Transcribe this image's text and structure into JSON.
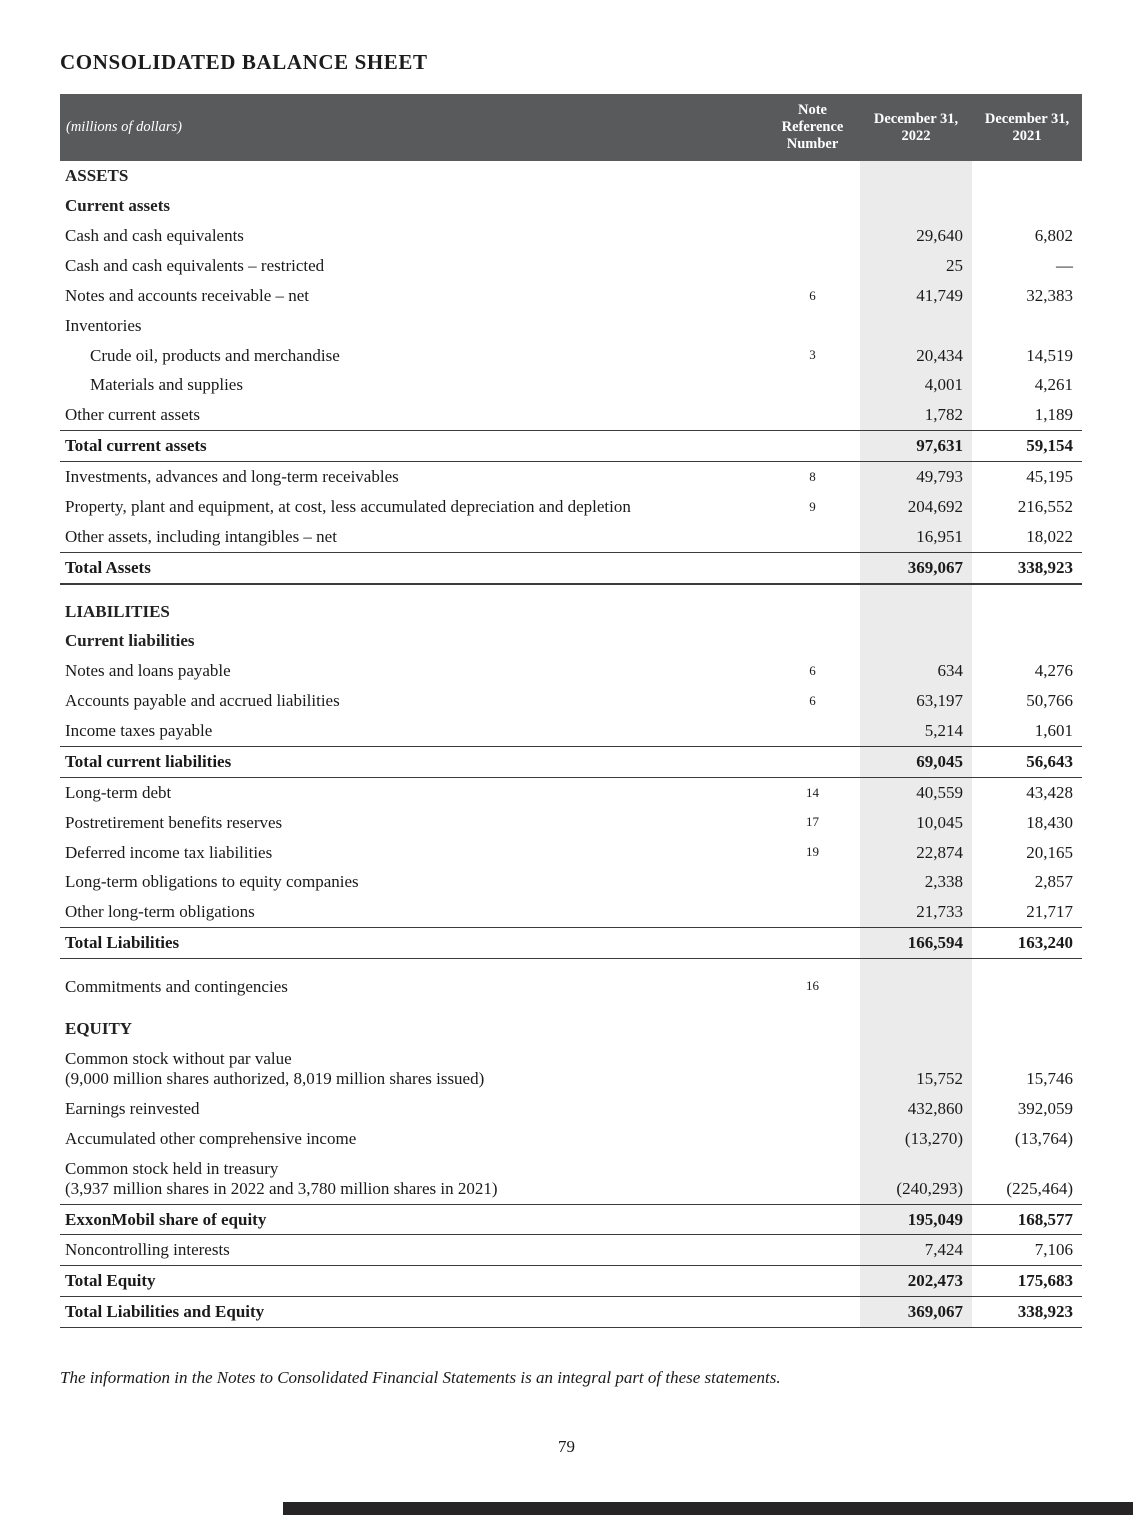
{
  "page": {
    "title": "CONSOLIDATED BALANCE SHEET",
    "footnote": "The information in the Notes to Consolidated Financial Statements is an integral part of these statements.",
    "page_number": "79"
  },
  "colors": {
    "header_bg": "#595a5c",
    "band_bg": "#ebebeb",
    "footer_bar": "#262425",
    "text": "#1a1a1a"
  },
  "table": {
    "columns": {
      "label": "(millions of dollars)",
      "note": "Note\nReference\nNumber",
      "y2022": "December 31,\n2022",
      "y2021": "December 31,\n2021"
    },
    "rows": [
      {
        "t": "section",
        "label": "ASSETS"
      },
      {
        "t": "sub",
        "label": "Current assets"
      },
      {
        "t": "item",
        "label": "Cash and cash equivalents",
        "note": "",
        "v2022": "29,640",
        "v2021": "6,802"
      },
      {
        "t": "item",
        "label": "Cash and cash equivalents – restricted",
        "note": "",
        "v2022": "25",
        "v2021": "—"
      },
      {
        "t": "item",
        "label": "Notes and accounts receivable – net",
        "note": "6",
        "v2022": "41,749",
        "v2021": "32,383"
      },
      {
        "t": "item",
        "label": "Inventories",
        "note": "",
        "v2022": "",
        "v2021": ""
      },
      {
        "t": "item",
        "indent": true,
        "label": "Crude oil, products and merchandise",
        "note": "3",
        "v2022": "20,434",
        "v2021": "14,519"
      },
      {
        "t": "item",
        "indent": true,
        "label": "Materials and supplies",
        "note": "",
        "v2022": "4,001",
        "v2021": "4,261"
      },
      {
        "t": "item",
        "label": "Other current assets",
        "note": "",
        "v2022": "1,782",
        "v2021": "1,189"
      },
      {
        "t": "total",
        "label": "Total current assets",
        "note": "",
        "v2022": "97,631",
        "v2021": "59,154"
      },
      {
        "t": "item",
        "label": "Investments, advances and long-term receivables",
        "note": "8",
        "v2022": "49,793",
        "v2021": "45,195"
      },
      {
        "t": "item",
        "label": "Property, plant and equipment, at cost, less accumulated depreciation and depletion",
        "note": "9",
        "v2022": "204,692",
        "v2021": "216,552"
      },
      {
        "t": "item",
        "label": "Other assets, including intangibles – net",
        "note": "",
        "v2022": "16,951",
        "v2021": "18,022"
      },
      {
        "t": "total",
        "thick": true,
        "label": "Total Assets",
        "note": "",
        "v2022": "369,067",
        "v2021": "338,923"
      },
      {
        "t": "spacer"
      },
      {
        "t": "section",
        "label": "LIABILITIES"
      },
      {
        "t": "sub",
        "label": "Current liabilities"
      },
      {
        "t": "item",
        "label": "Notes and loans payable",
        "note": "6",
        "v2022": "634",
        "v2021": "4,276"
      },
      {
        "t": "item",
        "label": "Accounts payable and accrued liabilities",
        "note": "6",
        "v2022": "63,197",
        "v2021": "50,766"
      },
      {
        "t": "item",
        "label": "Income taxes payable",
        "note": "",
        "v2022": "5,214",
        "v2021": "1,601"
      },
      {
        "t": "total",
        "label": "Total current liabilities",
        "note": "",
        "v2022": "69,045",
        "v2021": "56,643"
      },
      {
        "t": "item",
        "label": "Long-term debt",
        "note": "14",
        "v2022": "40,559",
        "v2021": "43,428"
      },
      {
        "t": "item",
        "label": "Postretirement benefits reserves",
        "note": "17",
        "v2022": "10,045",
        "v2021": "18,430"
      },
      {
        "t": "item",
        "label": "Deferred income tax liabilities",
        "note": "19",
        "v2022": "22,874",
        "v2021": "20,165"
      },
      {
        "t": "item",
        "label": "Long-term obligations to equity companies",
        "note": "",
        "v2022": "2,338",
        "v2021": "2,857"
      },
      {
        "t": "item",
        "label": "Other long-term obligations",
        "note": "",
        "v2022": "21,733",
        "v2021": "21,717"
      },
      {
        "t": "total",
        "label": "Total Liabilities",
        "note": "",
        "v2022": "166,594",
        "v2021": "163,240"
      },
      {
        "t": "spacer"
      },
      {
        "t": "item",
        "label": "Commitments and contingencies",
        "note": "16",
        "v2022": "",
        "v2021": ""
      },
      {
        "t": "spacer"
      },
      {
        "t": "section",
        "label": "EQUITY"
      },
      {
        "t": "item",
        "label": "Common stock without par value",
        "label2": "(9,000 million shares authorized, 8,019 million shares issued)",
        "note": "",
        "v2022": "15,752",
        "v2021": "15,746"
      },
      {
        "t": "item",
        "label": "Earnings reinvested",
        "note": "",
        "v2022": "432,860",
        "v2021": "392,059"
      },
      {
        "t": "item",
        "label": "Accumulated other comprehensive income",
        "note": "",
        "v2022": "(13,270)",
        "v2021": "(13,764)"
      },
      {
        "t": "item",
        "label": "Common stock held in treasury",
        "label2": "(3,937 million shares in 2022 and 3,780 million shares in 2021)",
        "note": "",
        "v2022": "(240,293)",
        "v2021": "(225,464)"
      },
      {
        "t": "total",
        "label": "ExxonMobil share of equity",
        "note": "",
        "v2022": "195,049",
        "v2021": "168,577"
      },
      {
        "t": "item",
        "label": "Noncontrolling interests",
        "note": "",
        "v2022": "7,424",
        "v2021": "7,106"
      },
      {
        "t": "total",
        "label": "Total Equity",
        "note": "",
        "v2022": "202,473",
        "v2021": "175,683"
      },
      {
        "t": "total",
        "label": "Total Liabilities and Equity",
        "note": "",
        "v2022": "369,067",
        "v2021": "338,923"
      }
    ]
  }
}
